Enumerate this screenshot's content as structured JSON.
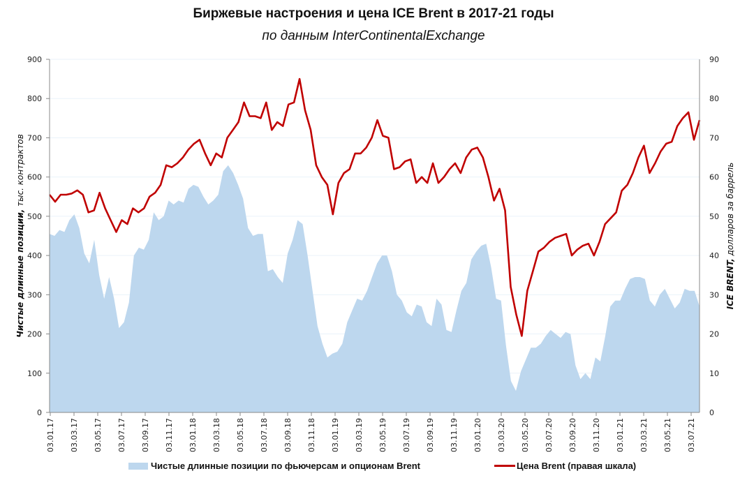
{
  "title": "Биржевые настроения и цена ICE Brent в 2017-21 годы",
  "subtitle": "по данным InterContinentalExchange",
  "chart_data": {
    "type": "area+line",
    "title": "Биржевые настроения и цена ICE Brent в 2017-21 годы",
    "subtitle": "по данным InterContinentalExchange",
    "ylabel_left": {
      "bold": "Чистые длинные позиции,",
      "italic": " тыс. контрактов"
    },
    "ylabel_right": {
      "bold": "ICE BRENT,",
      "italic": " долларов за баррель"
    },
    "ylim_left": [
      0,
      900
    ],
    "ylim_right": [
      0,
      90
    ],
    "yticks_left": [
      "0",
      "100",
      "200",
      "300",
      "400",
      "500",
      "600",
      "700",
      "800",
      "900"
    ],
    "yticks_right": [
      "0",
      "10",
      "20",
      "30",
      "40",
      "50",
      "60",
      "70",
      "80",
      "90"
    ],
    "x_tick_labels": [
      "03.01.17",
      "03.03.17",
      "03.05.17",
      "03.07.17",
      "03.09.17",
      "03.11.17",
      "03.01.18",
      "03.03.18",
      "03.05.18",
      "03.07.18",
      "03.09.18",
      "03.11.18",
      "03.01.19",
      "03.03.19",
      "03.05.19",
      "03.07.19",
      "03.09.19",
      "03.11.19",
      "03.01.20",
      "03.03.20",
      "03.05.20",
      "03.07.20",
      "03.09.20",
      "03.11.20",
      "03.01.21",
      "03.03.21",
      "03.05.21",
      "03.07.21"
    ],
    "grid": true,
    "legend_position": "bottom",
    "colors": {
      "area": "#bdd7ee",
      "line": "#c00000",
      "grid": "#eaf2fa",
      "axis": "#888888"
    },
    "series": [
      {
        "name": "Чистые длинные позиции по фьючерсам и опционам Brent",
        "type": "area",
        "axis": "left",
        "values": [
          455,
          450,
          465,
          460,
          490,
          505,
          470,
          405,
          380,
          440,
          350,
          290,
          345,
          290,
          215,
          230,
          280,
          400,
          420,
          415,
          440,
          510,
          490,
          500,
          540,
          530,
          540,
          535,
          570,
          580,
          575,
          550,
          530,
          540,
          555,
          615,
          630,
          610,
          580,
          545,
          470,
          450,
          455,
          455,
          360,
          365,
          345,
          330,
          405,
          440,
          490,
          480,
          400,
          310,
          220,
          175,
          140,
          150,
          155,
          175,
          230,
          260,
          290,
          285,
          310,
          345,
          380,
          400,
          400,
          360,
          300,
          285,
          255,
          245,
          275,
          270,
          230,
          220,
          290,
          275,
          210,
          205,
          260,
          310,
          330,
          390,
          410,
          425,
          430,
          370,
          290,
          285,
          170,
          80,
          55,
          105,
          135,
          165,
          165,
          175,
          195,
          210,
          200,
          190,
          205,
          200,
          120,
          85,
          100,
          85,
          140,
          130,
          195,
          270,
          285,
          285,
          315,
          340,
          345,
          345,
          340,
          285,
          270,
          300,
          315,
          290,
          265,
          280,
          315,
          310,
          310,
          270
        ]
      },
      {
        "name": "Цена Brent (правая шкала)",
        "type": "line",
        "axis": "right",
        "values": [
          55.5,
          53.7,
          55.5,
          55.5,
          55.8,
          56.6,
          55.5,
          51,
          51.5,
          56,
          52,
          49,
          46,
          49,
          48,
          52,
          51,
          52,
          55,
          56,
          58,
          63,
          62.5,
          63.5,
          65,
          67,
          68.5,
          69.5,
          66,
          63,
          66,
          65,
          70,
          72,
          74,
          79,
          75.5,
          75.5,
          75,
          79,
          72,
          74,
          73,
          78.5,
          79,
          85,
          77,
          72,
          63,
          60,
          58,
          50.5,
          58.5,
          61,
          62,
          66,
          66,
          67.5,
          70,
          74.5,
          70.5,
          70,
          62,
          62.5,
          64,
          64.5,
          58.5,
          60,
          58.5,
          63.5,
          58.5,
          60,
          62,
          63.5,
          61,
          65,
          67,
          67.5,
          65,
          60,
          54,
          57,
          51.5,
          32,
          25,
          19.5,
          31,
          36,
          41,
          42,
          43.5,
          44.5,
          45,
          45.5,
          40,
          41.5,
          42.5,
          43,
          40,
          43.5,
          48,
          49.5,
          51,
          56.5,
          58,
          61,
          65,
          68,
          61,
          63.5,
          66.5,
          68.5,
          69,
          73,
          75,
          76.5,
          69.5,
          74.5
        ]
      }
    ]
  },
  "legend": {
    "area_label": "Чистые длинные позиции по фьючерсам и опционам Brent",
    "line_label": "Цена Brent (правая шкала)"
  }
}
